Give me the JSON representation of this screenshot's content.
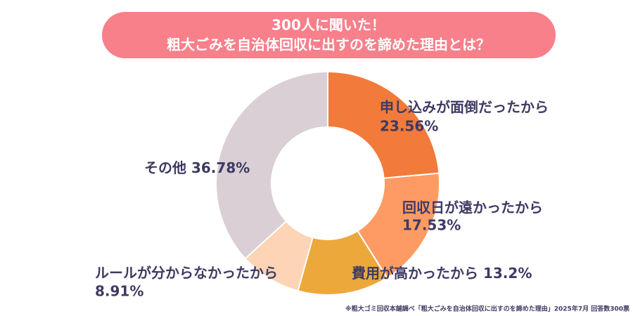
{
  "chart_data": {
    "type": "donut",
    "title": "300人に聞いた！",
    "subtitle": "粗大ごみを自治体回収に出すのを諦めた理由とは？",
    "categories": [
      "申し込みが面倒だったから",
      "回収日が遠かったから",
      "費用が高かったから",
      "ルールが分からなかったから",
      "その他"
    ],
    "values": [
      23.56,
      17.53,
      13.2,
      8.91,
      36.78
    ],
    "value_labels": [
      "23.56%",
      "17.53%",
      "13.2%",
      "8.91%",
      "36.78%"
    ],
    "colors": [
      "#f27a3a",
      "#fe9b64",
      "#eca83b",
      "#fdd4b6",
      "#d9cfd4"
    ],
    "footnote": "※粗大ゴミ回収本舗調べ「粗大ごみを自治体回収に出すのを諦めた理由」2025年7月 回答数300票"
  }
}
